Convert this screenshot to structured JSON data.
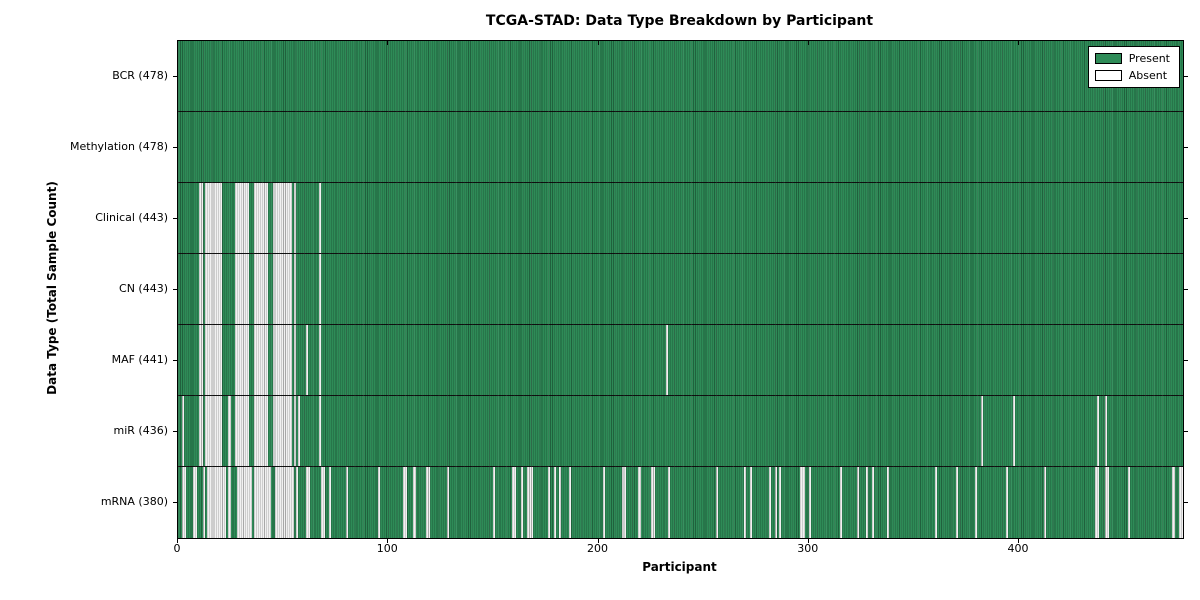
{
  "title": "TCGA-STAD: Data Type Breakdown by Participant",
  "x_axis": {
    "label": "Participant",
    "ticks": [
      "0",
      "100",
      "200",
      "300",
      "400"
    ]
  },
  "y_axis": {
    "label": "Data Type (Total Sample Count)"
  },
  "legend": {
    "present_label": "Present",
    "absent_label": "Absent"
  },
  "colors": {
    "present": "#2E8B57",
    "absent": "#F1F1F1",
    "frame": "#000000"
  },
  "chart_data": {
    "type": "heatmap",
    "title": "TCGA-STAD: Data Type Breakdown by Participant",
    "xlabel": "Participant",
    "ylabel": "Data Type (Total Sample Count)",
    "legend_position": "upper right",
    "legend_entries": [
      {
        "label": "Present",
        "color": "#2E8B57"
      },
      {
        "label": "Absent",
        "color": "#FFFFFF"
      }
    ],
    "n_participants": 478,
    "x_ticks": [
      0,
      100,
      200,
      300,
      400
    ],
    "xlim": [
      0,
      478
    ],
    "rows": [
      {
        "label": "BCR (478)",
        "name": "BCR",
        "total": 478,
        "absent": []
      },
      {
        "label": "Methylation (478)",
        "name": "Methylation",
        "total": 478,
        "absent": []
      },
      {
        "label": "Clinical (443)",
        "name": "Clinical",
        "total": 443,
        "absent": [
          10,
          11,
          13,
          14,
          15,
          16,
          17,
          18,
          19,
          20,
          27,
          28,
          29,
          30,
          31,
          32,
          33,
          36,
          37,
          38,
          39,
          40,
          41,
          42,
          45,
          46,
          47,
          48,
          49,
          50,
          51,
          52,
          53,
          55,
          67
        ]
      },
      {
        "label": "CN (443)",
        "name": "CN",
        "total": 443,
        "absent": [
          10,
          11,
          13,
          14,
          15,
          16,
          17,
          18,
          19,
          20,
          27,
          28,
          29,
          30,
          31,
          32,
          33,
          36,
          37,
          38,
          39,
          40,
          41,
          42,
          45,
          46,
          47,
          48,
          49,
          50,
          51,
          52,
          53,
          55,
          67
        ]
      },
      {
        "label": "MAF (441)",
        "name": "MAF",
        "total": 441,
        "absent": [
          10,
          11,
          13,
          14,
          15,
          16,
          17,
          18,
          19,
          20,
          27,
          28,
          29,
          30,
          31,
          32,
          33,
          36,
          37,
          38,
          39,
          40,
          41,
          42,
          45,
          46,
          47,
          48,
          49,
          50,
          51,
          52,
          53,
          55,
          61,
          67,
          232
        ]
      },
      {
        "label": "miR (436)",
        "name": "miR",
        "total": 436,
        "absent": [
          2,
          10,
          11,
          13,
          14,
          15,
          16,
          17,
          18,
          19,
          20,
          24,
          27,
          28,
          29,
          30,
          31,
          32,
          33,
          36,
          37,
          38,
          39,
          40,
          41,
          42,
          45,
          46,
          47,
          48,
          49,
          50,
          51,
          52,
          53,
          55,
          57,
          67,
          382,
          397,
          437,
          441
        ]
      },
      {
        "label": "mRNA (380)",
        "name": "mRNA",
        "total": 380,
        "absent": [
          2,
          3,
          7,
          8,
          12,
          14,
          15,
          16,
          17,
          18,
          19,
          20,
          21,
          22,
          24,
          28,
          29,
          30,
          31,
          32,
          33,
          34,
          36,
          37,
          38,
          39,
          40,
          41,
          42,
          43,
          46,
          47,
          48,
          49,
          50,
          51,
          52,
          53,
          54,
          56,
          61,
          62,
          68,
          69,
          72,
          80,
          95,
          107,
          108,
          112,
          118,
          119,
          128,
          150,
          159,
          160,
          163,
          166,
          167,
          168,
          176,
          179,
          181,
          186,
          202,
          211,
          212,
          219,
          225,
          226,
          233,
          256,
          269,
          272,
          281,
          284,
          286,
          296,
          297,
          300,
          315,
          323,
          327,
          330,
          337,
          360,
          370,
          379,
          394,
          412,
          436,
          437,
          441,
          442,
          452,
          473,
          476,
          477
        ]
      }
    ]
  }
}
